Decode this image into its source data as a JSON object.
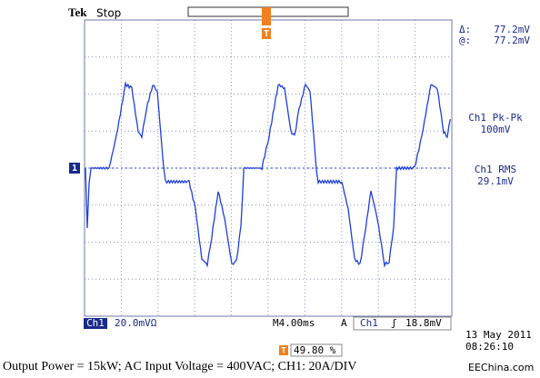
{
  "header": {
    "brand": "Tek",
    "status": "Stop"
  },
  "markers": {
    "channel": "1",
    "trigger": "T"
  },
  "cursor": {
    "delta": "Δ:",
    "delta_value": "77.2mV",
    "at": "@:",
    "at_value": "77.2mV"
  },
  "measurements": [
    {
      "label": "Ch1 Pk-Pk",
      "value": "100mV"
    },
    {
      "label": "Ch1 RMS",
      "value": "29.1mV"
    }
  ],
  "status_bar": {
    "channel": "Ch1",
    "scale": "20.0mVΩ",
    "timebase": "M4.00ms",
    "trigger_mode": "A",
    "trigger_channel": "Ch1",
    "trigger_slope": "ʃ",
    "trigger_level": "18.8mV",
    "position": "49.80 %"
  },
  "timestamp": {
    "date": "13 May 2011",
    "time": "08:26:10"
  },
  "caption": "Output Power = 15kW; AC Input Voltage = 400VAC; CH1: 20A/DIV",
  "watermark": "EEChina.com"
}
